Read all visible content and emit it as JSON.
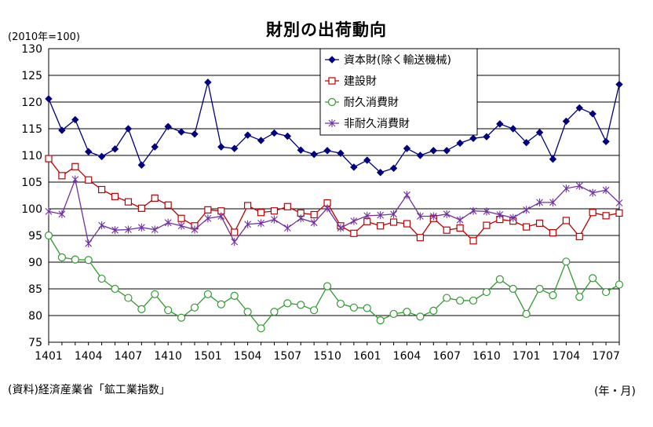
{
  "chart_data": {
    "type": "line",
    "title": "財別の出荷動向",
    "unit_label": "(2010年=100)",
    "source": "(資料)経済産業省「鉱工業指数」",
    "x_unit_label": "(年・月)",
    "ylim": [
      75,
      130
    ],
    "y_ticks": [
      75,
      80,
      85,
      90,
      95,
      100,
      105,
      110,
      115,
      120,
      125,
      130
    ],
    "grid": true,
    "legend_position": "top-right",
    "x": [
      "1401",
      "1402",
      "1403",
      "1404",
      "1405",
      "1406",
      "1407",
      "1408",
      "1409",
      "1410",
      "1411",
      "1412",
      "1501",
      "1502",
      "1503",
      "1504",
      "1505",
      "1506",
      "1507",
      "1508",
      "1509",
      "1510",
      "1511",
      "1512",
      "1601",
      "1602",
      "1603",
      "1604",
      "1605",
      "1606",
      "1607",
      "1608",
      "1609",
      "1610",
      "1611",
      "1612",
      "1701",
      "1702",
      "1703",
      "1704",
      "1705",
      "1706",
      "1707",
      "1708"
    ],
    "x_tick_labels": [
      "1401",
      "1404",
      "1407",
      "1410",
      "1501",
      "1504",
      "1507",
      "1510",
      "1601",
      "1604",
      "1607",
      "1610",
      "1701",
      "1704",
      "1707"
    ],
    "series": [
      {
        "name": "資本財(除く輸送機械)",
        "color": "#000080",
        "marker": "diamond",
        "values": [
          120.6,
          114.7,
          116.7,
          110.7,
          109.8,
          111.2,
          115.0,
          108.2,
          111.6,
          115.4,
          114.4,
          114.0,
          123.7,
          111.6,
          111.3,
          113.8,
          112.8,
          114.2,
          113.6,
          111.0,
          110.2,
          110.9,
          110.4,
          107.8,
          109.1,
          106.8,
          107.6,
          111.3,
          110.0,
          110.9,
          110.9,
          112.3,
          113.2,
          113.5,
          115.9,
          115.0,
          112.4,
          114.3,
          109.3,
          116.4,
          118.9,
          117.8,
          112.6,
          123.3
        ]
      },
      {
        "name": "建設財",
        "color": "#c00000",
        "marker": "square",
        "values": [
          109.4,
          106.2,
          107.9,
          105.4,
          103.6,
          102.3,
          101.3,
          100.1,
          102.0,
          100.7,
          98.2,
          96.8,
          99.8,
          99.6,
          95.6,
          100.6,
          99.3,
          99.6,
          100.4,
          99.2,
          98.9,
          101.1,
          96.8,
          95.4,
          97.6,
          96.8,
          97.5,
          97.2,
          94.6,
          98.2,
          96.0,
          96.4,
          94.0,
          96.9,
          98.0,
          97.7,
          96.6,
          97.3,
          95.5,
          97.8,
          94.8,
          99.3,
          98.7,
          99.2
        ]
      },
      {
        "name": "耐久消費財",
        "color": "#339933",
        "marker": "circle",
        "values": [
          95.0,
          90.9,
          90.5,
          90.4,
          86.9,
          85.0,
          83.3,
          81.2,
          84.0,
          81.0,
          79.6,
          81.5,
          84.0,
          82.1,
          83.7,
          80.7,
          77.6,
          80.7,
          82.3,
          82.0,
          81.0,
          85.5,
          82.2,
          81.5,
          81.4,
          79.1,
          80.3,
          80.7,
          79.8,
          80.9,
          83.3,
          82.8,
          82.8,
          84.4,
          86.8,
          85.0,
          80.3,
          85.0,
          83.8,
          90.1,
          83.5,
          87.0,
          84.4,
          85.8
        ]
      },
      {
        "name": "非耐久消費財",
        "color": "#7030a0",
        "marker": "star",
        "values": [
          99.5,
          99.0,
          105.5,
          93.5,
          96.9,
          96.0,
          96.1,
          96.5,
          96.1,
          97.4,
          96.8,
          96.1,
          98.2,
          98.6,
          93.8,
          97.1,
          97.3,
          98.0,
          96.4,
          98.2,
          97.4,
          100.1,
          96.4,
          97.7,
          98.7,
          98.8,
          99.0,
          102.6,
          98.6,
          98.6,
          99.0,
          97.9,
          99.6,
          99.5,
          98.9,
          98.3,
          99.8,
          101.2,
          101.2,
          103.8,
          104.3,
          103.0,
          103.5,
          101.1
        ]
      }
    ]
  }
}
